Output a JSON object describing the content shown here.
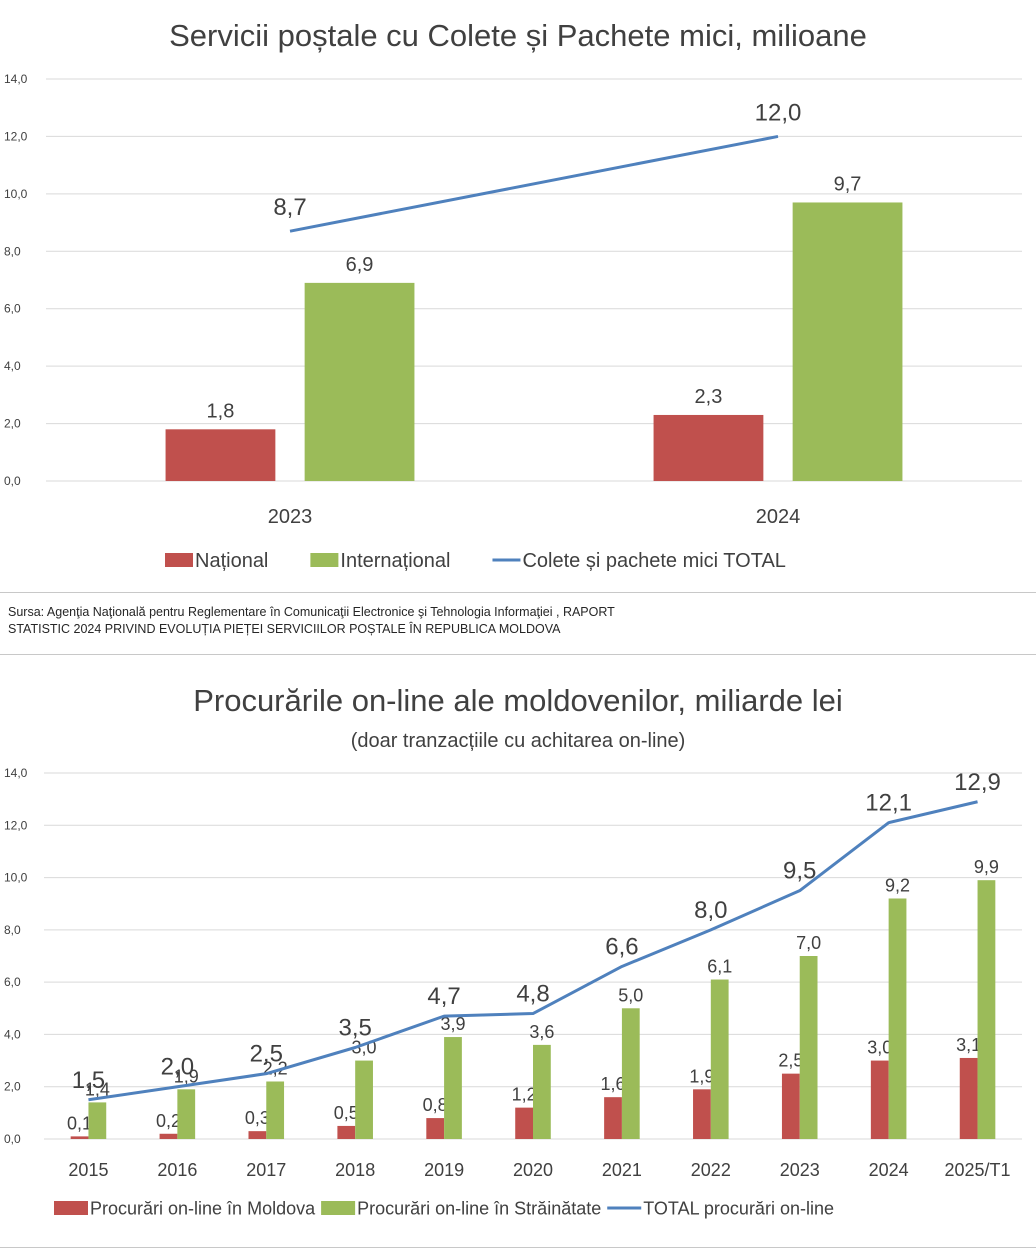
{
  "chart_data": [
    {
      "type": "bar",
      "title": "Servicii poștale cu Colete și Pachete mici, milioane",
      "subtitle": "",
      "categories": [
        "2023",
        "2024"
      ],
      "series": [
        {
          "name": "Național",
          "type": "bar",
          "color": "#c0504d",
          "values": [
            1.8,
            2.3
          ],
          "labels": [
            "1,8",
            "2,3"
          ]
        },
        {
          "name": "Internațional",
          "type": "bar",
          "color": "#9bbb59",
          "values": [
            6.9,
            9.7
          ],
          "labels": [
            "6,9",
            "9,7"
          ]
        },
        {
          "name": "Colete și pachete mici TOTAL",
          "type": "line",
          "color": "#4f81bd",
          "values": [
            8.7,
            12.0
          ],
          "labels": [
            "8,7",
            "12,0"
          ]
        }
      ],
      "ylim": [
        0,
        14
      ],
      "yticks": [
        "0,0",
        "2,0",
        "4,0",
        "6,0",
        "8,0",
        "10,0",
        "12,0",
        "14,0"
      ],
      "grid": true,
      "legend": "bottom"
    },
    {
      "type": "bar",
      "title": "Procurările on-line ale moldovenilor, miliarde lei",
      "subtitle": "(doar tranzacțiile cu achitarea on-line)",
      "categories": [
        "2015",
        "2016",
        "2017",
        "2018",
        "2019",
        "2020",
        "2021",
        "2022",
        "2023",
        "2024",
        "2025/T1"
      ],
      "series": [
        {
          "name": "Procurări on-line în Moldova",
          "type": "bar",
          "color": "#c0504d",
          "values": [
            0.1,
            0.2,
            0.3,
            0.5,
            0.8,
            1.2,
            1.6,
            1.9,
            2.5,
            3.0,
            3.1
          ],
          "labels": [
            "0,1",
            "0,2",
            "0,3",
            "0,5",
            "0,8",
            "1,2",
            "1,6",
            "1,9",
            "2,5",
            "3,0",
            "3,1"
          ]
        },
        {
          "name": "Procurări on-line în Străinătate",
          "type": "bar",
          "color": "#9bbb59",
          "values": [
            1.4,
            1.9,
            2.2,
            3.0,
            3.9,
            3.6,
            5.0,
            6.1,
            7.0,
            9.2,
            9.9
          ],
          "labels": [
            "1,4",
            "1,9",
            "2,2",
            "3,0",
            "3,9",
            "3,6",
            "5,0",
            "6,1",
            "7,0",
            "9,2",
            "9,9"
          ]
        },
        {
          "name": "TOTAL procurări on-line",
          "type": "line",
          "color": "#4f81bd",
          "values": [
            1.5,
            2.0,
            2.5,
            3.5,
            4.7,
            4.8,
            6.6,
            8.0,
            9.5,
            12.1,
            12.9
          ],
          "labels": [
            "1,5",
            "2,0",
            "2,5",
            "3,5",
            "4,7",
            "4,8",
            "6,6",
            "8,0",
            "9,5",
            "12,1",
            "12,9"
          ]
        }
      ],
      "ylim": [
        0,
        14
      ],
      "yticks": [
        "0,0",
        "2,0",
        "4,0",
        "6,0",
        "8,0",
        "10,0",
        "12,0",
        "14,0"
      ],
      "grid": true,
      "legend": "bottom"
    }
  ],
  "source": {
    "line1": "Sursa: Agenţia Naţională pentru Reglementare în Comunicaţii Electronice şi Tehnologia Informaţiei , RAPORT",
    "line2": "STATISTIC 2024 PRIVIND EVOLUȚIA PIEȚEI SERVICIILOR POȘTALE ÎN REPUBLICA MOLDOVA"
  }
}
